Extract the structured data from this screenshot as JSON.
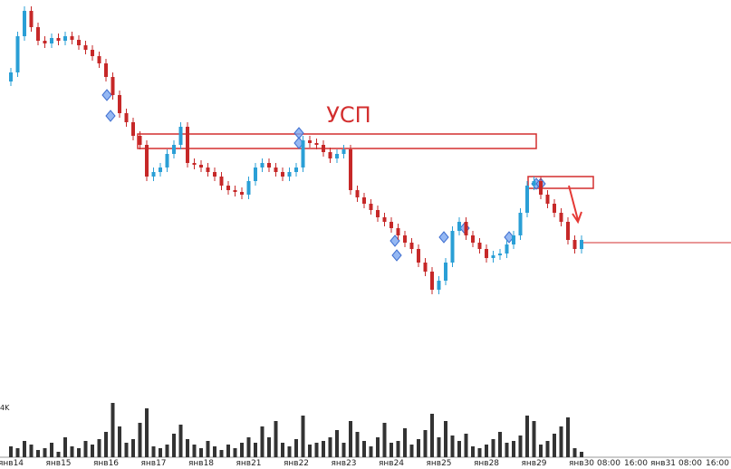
{
  "chart_data": {
    "type": "candlestick",
    "annotation": "УСП",
    "volume_label": "4K",
    "categories": [
      "янв14",
      null,
      null,
      null,
      null,
      null,
      null,
      "янв15",
      null,
      null,
      null,
      null,
      null,
      null,
      "янв16",
      null,
      null,
      null,
      null,
      null,
      null,
      "янв17",
      null,
      null,
      null,
      null,
      null,
      null,
      "янв18",
      null,
      null,
      null,
      null,
      null,
      null,
      "янв21",
      null,
      null,
      null,
      null,
      null,
      null,
      "янв22",
      null,
      null,
      null,
      null,
      null,
      null,
      "янв23",
      null,
      null,
      null,
      null,
      null,
      null,
      "янв24",
      null,
      null,
      null,
      null,
      null,
      null,
      "янв25",
      null,
      null,
      null,
      null,
      null,
      null,
      "янв28",
      null,
      null,
      null,
      null,
      null,
      null,
      "янв29",
      null,
      null,
      null,
      null,
      null,
      null,
      "янв30",
      null,
      null,
      null,
      "08:00",
      null,
      null,
      null,
      "16:00",
      null,
      null,
      null,
      "янв31",
      null,
      null,
      null,
      "08:00",
      null,
      null,
      null,
      "16:00"
    ],
    "open": [
      310,
      320,
      360,
      388,
      370,
      355,
      352,
      358,
      355,
      360,
      356,
      350,
      345,
      338,
      330,
      315,
      295,
      275,
      265,
      250,
      240,
      205,
      210,
      215,
      230,
      240,
      260,
      220,
      218,
      215,
      210,
      205,
      195,
      190,
      188,
      185,
      200,
      215,
      220,
      215,
      210,
      205,
      210,
      215,
      245,
      242,
      240,
      232,
      225,
      230,
      235,
      190,
      182,
      175,
      168,
      160,
      155,
      148,
      140,
      132,
      125,
      110,
      100,
      80,
      90,
      110,
      145,
      155,
      140,
      132,
      125,
      115,
      118,
      120,
      130,
      140,
      165,
      195,
      200,
      185,
      175,
      165,
      155,
      135,
      125,
      null,
      null,
      null,
      null,
      null,
      null,
      null,
      null,
      null,
      null,
      null,
      null,
      null,
      null,
      null,
      null,
      null,
      null,
      null,
      null
    ],
    "high": [
      325,
      365,
      393,
      393,
      375,
      360,
      363,
      363,
      365,
      365,
      361,
      355,
      350,
      343,
      335,
      320,
      300,
      280,
      270,
      255,
      245,
      215,
      220,
      235,
      245,
      265,
      265,
      225,
      223,
      220,
      215,
      210,
      200,
      195,
      193,
      205,
      220,
      225,
      225,
      220,
      215,
      215,
      220,
      250,
      250,
      247,
      245,
      237,
      235,
      240,
      240,
      195,
      187,
      180,
      173,
      165,
      160,
      153,
      145,
      137,
      130,
      115,
      105,
      95,
      115,
      150,
      160,
      160,
      145,
      137,
      130,
      123,
      125,
      135,
      145,
      170,
      200,
      205,
      205,
      190,
      180,
      170,
      160,
      140,
      140,
      null,
      null,
      null,
      null,
      null,
      null,
      null,
      null,
      null,
      null,
      null,
      null,
      null,
      null,
      null,
      null,
      null,
      null,
      null,
      null
    ],
    "low": [
      305,
      315,
      355,
      365,
      350,
      347,
      347,
      350,
      350,
      351,
      345,
      340,
      333,
      325,
      310,
      290,
      270,
      260,
      245,
      235,
      200,
      200,
      205,
      210,
      225,
      235,
      215,
      213,
      210,
      205,
      200,
      190,
      185,
      183,
      180,
      180,
      195,
      210,
      210,
      205,
      200,
      200,
      205,
      210,
      237,
      235,
      227,
      220,
      220,
      225,
      185,
      177,
      170,
      163,
      155,
      150,
      143,
      135,
      127,
      120,
      105,
      95,
      75,
      75,
      85,
      105,
      140,
      135,
      127,
      120,
      110,
      110,
      113,
      115,
      125,
      135,
      160,
      190,
      180,
      170,
      160,
      150,
      130,
      120,
      120,
      null,
      null,
      null,
      null,
      null,
      null,
      null,
      null,
      null,
      null,
      null,
      null,
      null,
      null,
      null,
      null,
      null,
      null,
      null,
      null
    ],
    "close": [
      320,
      360,
      388,
      370,
      355,
      352,
      358,
      355,
      360,
      356,
      350,
      345,
      338,
      330,
      315,
      295,
      275,
      265,
      250,
      240,
      205,
      210,
      215,
      230,
      240,
      260,
      220,
      218,
      215,
      210,
      205,
      195,
      190,
      188,
      185,
      200,
      215,
      220,
      215,
      210,
      205,
      210,
      215,
      245,
      242,
      240,
      232,
      225,
      230,
      235,
      190,
      182,
      175,
      168,
      160,
      155,
      148,
      140,
      132,
      125,
      110,
      100,
      80,
      90,
      110,
      145,
      155,
      140,
      132,
      125,
      115,
      118,
      120,
      130,
      140,
      165,
      195,
      200,
      185,
      175,
      165,
      155,
      135,
      125,
      135,
      null,
      null,
      null,
      null,
      null,
      null,
      null,
      null,
      null,
      null,
      null,
      null,
      null,
      null,
      null,
      null,
      null,
      null,
      null,
      null
    ],
    "volume": [
      12,
      10,
      18,
      14,
      8,
      10,
      16,
      6,
      22,
      12,
      10,
      18,
      14,
      20,
      28,
      60,
      34,
      16,
      20,
      38,
      54,
      12,
      10,
      14,
      26,
      36,
      20,
      14,
      10,
      18,
      12,
      8,
      14,
      10,
      16,
      22,
      16,
      34,
      22,
      40,
      16,
      12,
      20,
      46,
      14,
      16,
      18,
      22,
      30,
      16,
      40,
      28,
      18,
      12,
      22,
      38,
      16,
      18,
      32,
      14,
      20,
      30,
      48,
      22,
      40,
      24,
      18,
      26,
      12,
      10,
      14,
      20,
      28,
      16,
      18,
      24,
      46,
      40,
      14,
      18,
      26,
      34,
      44,
      10,
      6,
      null,
      null,
      null,
      null,
      null,
      null,
      null,
      null,
      null,
      null,
      null,
      null,
      null,
      null,
      null,
      null,
      null,
      null,
      null,
      null
    ],
    "up_color": "#2a9fd6",
    "down_color": "#c62828",
    "volume_color": "#333333",
    "ylim": [
      0,
      400
    ],
    "volume_lim": [
      0,
      60
    ]
  }
}
